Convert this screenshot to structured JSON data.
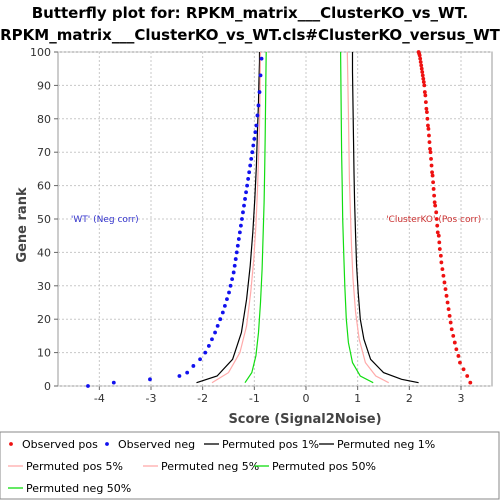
{
  "chart_data": {
    "type": "line",
    "title_lines": [
      "Butterfly plot for: RPKM_matrix___ClusterKO_vs_WT.",
      "RPKM_matrix___ClusterKO_vs_WT.cls#ClusterKO_versus_WT"
    ],
    "xlabel": "Score (Signal2Noise)",
    "ylabel": "Gene rank",
    "xlim": [
      -4.8,
      3.6
    ],
    "ylim": [
      0,
      100
    ],
    "xticks": [
      -4,
      -3,
      -2,
      -1,
      0,
      1,
      2,
      3
    ],
    "yticks": [
      0,
      10,
      20,
      30,
      40,
      50,
      60,
      70,
      80,
      90,
      100
    ],
    "grid": true,
    "legend_position": "bottom",
    "annotations": [
      {
        "text": "'WT' (Neg corr)",
        "x": -4.55,
        "y": 50,
        "color": "#3333cc"
      },
      {
        "text": "'ClusterKO' (Pos corr)",
        "x": 1.55,
        "y": 50,
        "color": "#cc3333"
      }
    ],
    "series": [
      {
        "name": "Observed pos",
        "kind": "points",
        "color": "#ee1111",
        "x": [
          3.18,
          3.12,
          3.05,
          2.98,
          2.95,
          2.91,
          2.88,
          2.85,
          2.82,
          2.8,
          2.78,
          2.76,
          2.74,
          2.72,
          2.7,
          2.68,
          2.66,
          2.64,
          2.62,
          2.61,
          2.59,
          2.58,
          2.57,
          2.55,
          2.54,
          2.53,
          2.52,
          2.5,
          2.49,
          2.48,
          2.47,
          2.46,
          2.45,
          2.44,
          2.43,
          2.42,
          2.41,
          2.4,
          2.39,
          2.38,
          2.37,
          2.36,
          2.35,
          2.34,
          2.33,
          2.32,
          2.31,
          2.3,
          2.29,
          2.28,
          2.27,
          2.26,
          2.25,
          2.24,
          2.23,
          2.22,
          2.21,
          2.2,
          2.19,
          2.18
        ],
        "y": [
          1,
          3,
          5,
          7,
          9,
          11,
          13,
          15,
          17,
          19,
          21,
          23,
          25,
          27,
          29,
          31,
          33,
          35,
          37,
          39,
          41,
          43,
          45,
          46,
          48,
          50,
          52,
          54,
          55,
          57,
          59,
          61,
          63,
          64,
          66,
          68,
          70,
          71,
          73,
          75,
          77,
          78,
          80,
          82,
          83,
          85,
          87,
          88,
          90,
          91,
          92,
          93,
          94,
          95,
          96,
          97,
          98,
          99,
          99.5,
          100
        ]
      },
      {
        "name": "Observed neg",
        "kind": "points",
        "color": "#1111ee",
        "x": [
          -4.22,
          -3.72,
          -3.02,
          -2.45,
          -2.3,
          -2.18,
          -2.05,
          -1.95,
          -1.88,
          -1.82,
          -1.76,
          -1.71,
          -1.66,
          -1.61,
          -1.57,
          -1.53,
          -1.49,
          -1.46,
          -1.43,
          -1.4,
          -1.38,
          -1.36,
          -1.34,
          -1.32,
          -1.3,
          -1.28,
          -1.26,
          -1.24,
          -1.22,
          -1.2,
          -1.18,
          -1.16,
          -1.14,
          -1.12,
          -1.1,
          -1.08,
          -1.06,
          -1.04,
          -1.02,
          -1.0,
          -0.98,
          -0.96,
          -0.94,
          -0.92,
          -0.9,
          -0.88,
          -0.86
        ],
        "y": [
          0,
          1,
          2,
          3,
          4,
          6,
          8,
          10,
          12,
          14,
          16,
          18,
          20,
          22,
          24,
          26,
          28,
          30,
          32,
          34,
          36,
          38,
          40,
          42,
          44,
          46,
          48,
          50,
          52,
          54,
          56,
          58,
          60,
          62,
          64,
          66,
          68,
          70,
          72,
          74,
          76,
          78,
          81,
          84,
          88,
          93,
          98
        ]
      },
      {
        "name": "Permuted pos 1%",
        "kind": "line",
        "color": "#000000",
        "x": [
          2.18,
          1.85,
          1.5,
          1.25,
          1.12,
          1.05,
          1.01,
          0.98,
          0.96,
          0.94,
          0.93,
          0.92,
          0.91,
          0.9,
          0.9
        ],
        "y": [
          1,
          2,
          4,
          8,
          14,
          20,
          28,
          36,
          45,
          55,
          64,
          74,
          84,
          94,
          100
        ]
      },
      {
        "name": "Permuted neg 1%",
        "kind": "line",
        "color": "#000000",
        "x": [
          -2.12,
          -1.72,
          -1.42,
          -1.25,
          -1.15,
          -1.08,
          -1.03,
          -0.99,
          -0.96,
          -0.94,
          -0.92,
          -0.91,
          -0.9,
          -0.9
        ],
        "y": [
          1,
          3,
          8,
          16,
          26,
          36,
          46,
          56,
          66,
          76,
          85,
          92,
          97,
          100
        ]
      },
      {
        "name": "Permuted pos 5%",
        "kind": "line",
        "color": "#ffaaaa",
        "x": [
          1.6,
          1.35,
          1.15,
          1.03,
          0.96,
          0.91,
          0.88,
          0.86,
          0.84,
          0.83,
          0.82,
          0.81,
          0.8
        ],
        "y": [
          1,
          3,
          7,
          14,
          22,
          32,
          42,
          52,
          62,
          72,
          82,
          92,
          100
        ]
      },
      {
        "name": "Permuted neg 5%",
        "kind": "line",
        "color": "#ffaaaa",
        "x": [
          -1.82,
          -1.5,
          -1.28,
          -1.15,
          -1.07,
          -1.01,
          -0.97,
          -0.94,
          -0.92,
          -0.9,
          -0.89,
          -0.88
        ],
        "y": [
          1,
          4,
          10,
          18,
          28,
          38,
          48,
          58,
          68,
          78,
          88,
          100
        ]
      },
      {
        "name": "Permuted pos 50%",
        "kind": "line",
        "color": "#11dd11",
        "x": [
          1.3,
          1.05,
          0.9,
          0.82,
          0.78,
          0.75,
          0.73,
          0.71,
          0.7,
          0.69,
          0.68,
          0.67
        ],
        "y": [
          1,
          3,
          7,
          13,
          20,
          30,
          40,
          50,
          60,
          70,
          85,
          100
        ]
      },
      {
        "name": "Permuted neg 50%",
        "kind": "line",
        "color": "#11dd11",
        "x": [
          -1.18,
          -1.05,
          -0.97,
          -0.92,
          -0.88,
          -0.85,
          -0.83,
          -0.81,
          -0.8,
          -0.79,
          -0.78,
          -0.77
        ],
        "y": [
          1,
          4,
          9,
          16,
          25,
          35,
          45,
          55,
          65,
          75,
          88,
          100
        ]
      }
    ]
  }
}
